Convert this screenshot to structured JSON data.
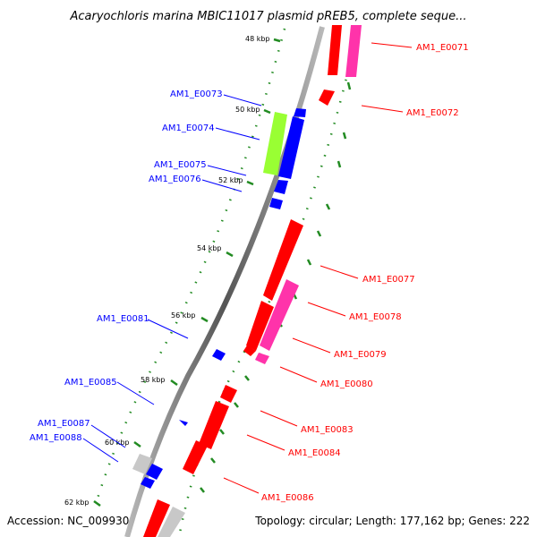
{
  "title": "Acaryochloris marina MBIC11017 plasmid pREB5, complete seque...",
  "accession": "Accession: NC_009930",
  "topology": "Topology: circular; Length: 177,162 bp; Genes: 222",
  "colors": {
    "forward": "#ff0000",
    "forward_alt": "#ff33aa",
    "reverse": "#0000ff",
    "reverse_alt": "#99ff33",
    "pseudo": "#c8c8c8",
    "tick": "#228b22",
    "backbone": "#808080"
  },
  "kbp_marks": [
    "48 kbp",
    "50 kbp",
    "52 kbp",
    "54 kbp",
    "56 kbp",
    "58 kbp",
    "60 kbp",
    "62 kbp"
  ],
  "left_genes": [
    "AM1_E0073",
    "AM1_E0074",
    "AM1_E0075",
    "AM1_E0076",
    "AM1_E0081",
    "AM1_E0085",
    "AM1_E0087",
    "AM1_E0088"
  ],
  "right_genes": [
    "AM1_E0071",
    "AM1_E0072",
    "AM1_E0077",
    "AM1_E0078",
    "AM1_E0079",
    "AM1_E0080",
    "AM1_E0083",
    "AM1_E0084",
    "AM1_E0086"
  ]
}
